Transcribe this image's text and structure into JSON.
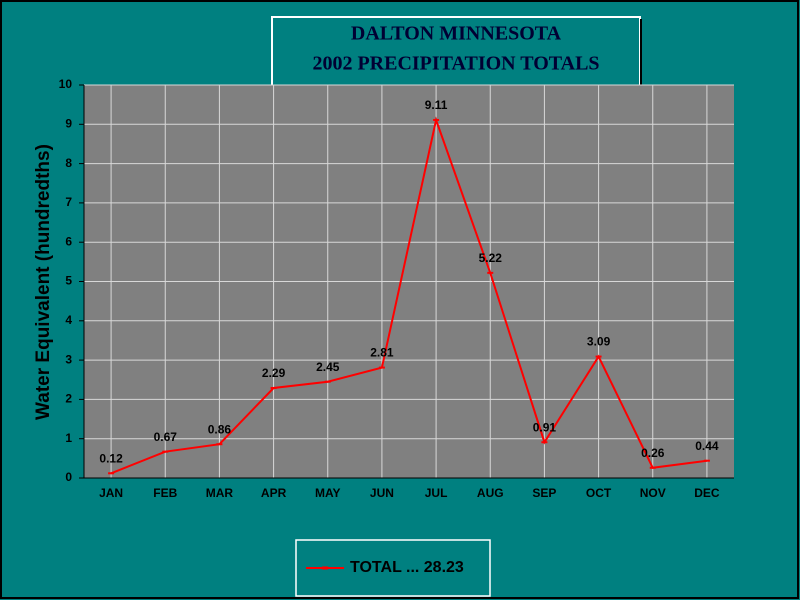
{
  "chart_data": {
    "type": "line",
    "title": "DALTON MINNESOTA",
    "subtitle": "2002 PRECIPITATION TOTALS",
    "y_label": "Water Equivalent (hundredths)",
    "categories": [
      "JAN",
      "FEB",
      "MAR",
      "APR",
      "MAY",
      "JUN",
      "JUL",
      "AUG",
      "SEP",
      "OCT",
      "NOV",
      "DEC"
    ],
    "series": [
      {
        "name": "TOTAL ... 28.23",
        "color": "#ff0000",
        "values": [
          0.12,
          0.67,
          0.86,
          2.29,
          2.45,
          2.81,
          9.11,
          5.22,
          0.91,
          3.09,
          0.26,
          0.44
        ]
      }
    ],
    "ylim": [
      0,
      10
    ],
    "yticks": [
      0,
      1,
      2,
      3,
      4,
      5,
      6,
      7,
      8,
      9,
      10
    ],
    "grid": true,
    "legend": "bottom"
  }
}
